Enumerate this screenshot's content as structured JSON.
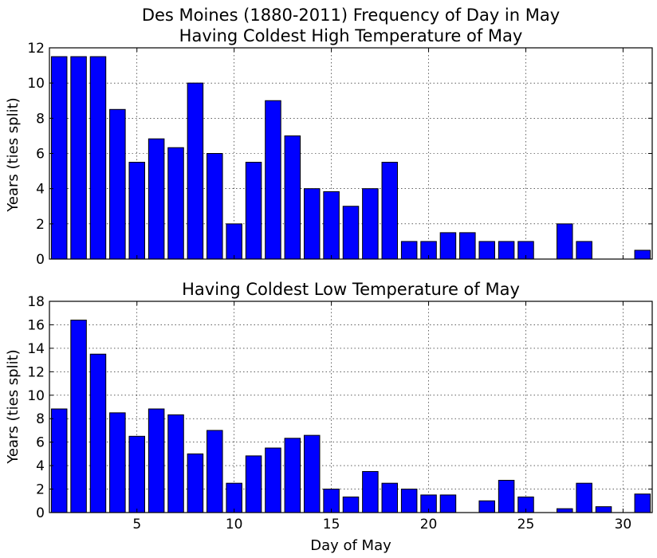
{
  "chart_data": [
    {
      "type": "bar",
      "title": "Des Moines (1880-2011) Frequency of Day in May",
      "subtitle": "Having Coldest High Temperature of May",
      "xlabel": "",
      "ylabel": "Years (ties split)",
      "x": [
        1,
        2,
        3,
        4,
        5,
        6,
        7,
        8,
        9,
        10,
        11,
        12,
        13,
        14,
        15,
        16,
        17,
        18,
        19,
        20,
        21,
        22,
        23,
        24,
        25,
        26,
        27,
        28,
        29,
        30,
        31
      ],
      "values": [
        11.5,
        11.5,
        11.5,
        8.5,
        5.5,
        6.83,
        6.33,
        10,
        6,
        2,
        5.5,
        9,
        7,
        4,
        3.83,
        3,
        4,
        5.5,
        1,
        1,
        1.5,
        1.5,
        1,
        1,
        1,
        0,
        2,
        1,
        0,
        0,
        0.5
      ],
      "xlim": [
        0.5,
        31.5
      ],
      "ylim": [
        0,
        12
      ],
      "yticks": [
        0,
        2,
        4,
        6,
        8,
        10,
        12
      ],
      "xticks": [
        5,
        10,
        15,
        20,
        25,
        30
      ],
      "show_x_tick_labels": false,
      "grid": true,
      "bar_color": "#0000ff"
    },
    {
      "type": "bar",
      "title": "Having Coldest Low Temperature of May",
      "xlabel": "Day of May",
      "ylabel": "Years (ties split)",
      "x": [
        1,
        2,
        3,
        4,
        5,
        6,
        7,
        8,
        9,
        10,
        11,
        12,
        13,
        14,
        15,
        16,
        17,
        18,
        19,
        20,
        21,
        22,
        23,
        24,
        25,
        26,
        27,
        28,
        29,
        30,
        31
      ],
      "values": [
        8.83,
        16.4,
        13.5,
        8.5,
        6.5,
        8.83,
        8.33,
        5,
        7,
        2.5,
        4.83,
        5.5,
        6.33,
        6.58,
        2,
        1.33,
        3.5,
        2.5,
        2,
        1.5,
        1.5,
        0,
        1,
        2.75,
        1.33,
        0,
        0.33,
        2.5,
        0.5,
        0,
        1.58
      ],
      "xlim": [
        0.5,
        31.5
      ],
      "ylim": [
        0,
        18
      ],
      "yticks": [
        0,
        2,
        4,
        6,
        8,
        10,
        12,
        14,
        16,
        18
      ],
      "xticks": [
        5,
        10,
        15,
        20,
        25,
        30
      ],
      "show_x_tick_labels": true,
      "grid": true,
      "bar_color": "#0000ff"
    }
  ]
}
